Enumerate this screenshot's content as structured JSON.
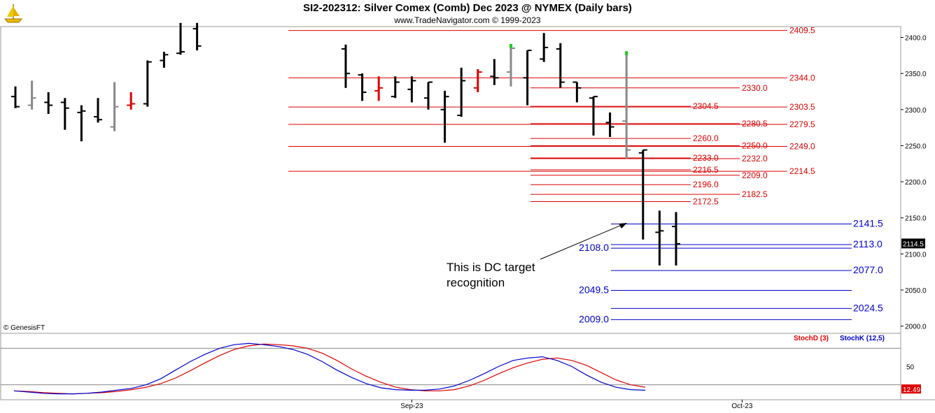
{
  "header": {
    "title": "SI2-202312:  Silver Comex (Comb) Dec 2023 @ NYMEX  (Daily bars)",
    "subtitle": "www.TradeNavigator.com © 1999-2023"
  },
  "copyright": "© GenesisFT",
  "annotation": {
    "line1": "This is DC target",
    "line2": "recognition"
  },
  "chart_data": [
    {
      "type": "ohlc",
      "title": "SI2-202312:  Silver Comex (Comb) Dec 2023 @ NYMEX  (Daily bars)",
      "ylim": [
        1990,
        2415
      ],
      "y_ticks": [
        "2400.0",
        "2350.0",
        "2300.0",
        "2250.0",
        "2200.0",
        "2150.0",
        "2100.0",
        "2050.0",
        "2000.0"
      ],
      "x_ticks": [
        {
          "label": "Sep-23",
          "index": 16
        },
        {
          "label": "Oct-23",
          "index": 36
        }
      ],
      "last_price": "2114.5",
      "colors": {
        "up": "#000000",
        "grey": "#888888",
        "red": "#dd0000",
        "green": "#22cc22",
        "red_line": "#dd0000",
        "blue_line": "#0000cc"
      },
      "bars": [
        {
          "o": 2318,
          "h": 2332,
          "l": 2302,
          "c": 2304,
          "col": "k"
        },
        {
          "o": 2306,
          "h": 2340,
          "l": 2300,
          "c": 2316,
          "col": "g"
        },
        {
          "o": 2310,
          "h": 2324,
          "l": 2294,
          "c": 2306,
          "col": "k"
        },
        {
          "o": 2310,
          "h": 2316,
          "l": 2272,
          "c": 2302,
          "col": "k"
        },
        {
          "o": 2296,
          "h": 2306,
          "l": 2256,
          "c": 2298,
          "col": "k"
        },
        {
          "o": 2290,
          "h": 2316,
          "l": 2282,
          "c": 2286,
          "col": "k"
        },
        {
          "o": 2276,
          "h": 2338,
          "l": 2270,
          "c": 2304,
          "col": "g"
        },
        {
          "o": 2306,
          "h": 2324,
          "l": 2300,
          "c": 2308,
          "col": "r"
        },
        {
          "o": 2308,
          "h": 2368,
          "l": 2304,
          "c": 2366,
          "col": "k"
        },
        {
          "o": 2368,
          "h": 2380,
          "l": 2358,
          "c": 2376,
          "col": "k"
        },
        {
          "o": 2378,
          "h": 2420,
          "l": 2376,
          "c": 2380,
          "col": "k"
        },
        {
          "o": 2412,
          "h": 2420,
          "l": 2382,
          "c": 2388,
          "col": "k"
        },
        {
          "o": 2384,
          "h": 2390,
          "l": 2330,
          "c": 2350,
          "col": "k"
        },
        {
          "o": 2348,
          "h": 2350,
          "l": 2312,
          "c": 2324,
          "col": "k"
        },
        {
          "o": 2326,
          "h": 2346,
          "l": 2312,
          "c": 2330,
          "col": "r"
        },
        {
          "o": 2318,
          "h": 2346,
          "l": 2316,
          "c": 2338,
          "col": "k"
        },
        {
          "o": 2328,
          "h": 2346,
          "l": 2310,
          "c": 2340,
          "col": "k"
        },
        {
          "o": 2316,
          "h": 2338,
          "l": 2300,
          "c": 2338,
          "col": "k"
        },
        {
          "o": 2300,
          "h": 2326,
          "l": 2254,
          "c": 2318,
          "col": "k"
        },
        {
          "o": 2292,
          "h": 2358,
          "l": 2290,
          "c": 2340,
          "col": "k"
        },
        {
          "o": 2330,
          "h": 2356,
          "l": 2324,
          "c": 2352,
          "col": "r"
        },
        {
          "o": 2346,
          "h": 2370,
          "l": 2334,
          "c": 2344,
          "col": "k"
        },
        {
          "o": 2352,
          "h": 2390,
          "l": 2332,
          "c": 2385,
          "col": "g"
        },
        {
          "o": 2344,
          "h": 2382,
          "l": 2306,
          "c": 2382,
          "col": "k"
        },
        {
          "o": 2370,
          "h": 2406,
          "l": 2366,
          "c": 2386,
          "col": "k"
        },
        {
          "o": 2384,
          "h": 2392,
          "l": 2330,
          "c": 2338,
          "col": "k"
        },
        {
          "o": 2338,
          "h": 2338,
          "l": 2310,
          "c": 2330,
          "col": "k"
        },
        {
          "o": 2316,
          "h": 2318,
          "l": 2264,
          "c": 2318,
          "col": "k"
        },
        {
          "o": 2282,
          "h": 2296,
          "l": 2262,
          "c": 2276,
          "col": "k"
        },
        {
          "o": 2284,
          "h": 2380,
          "l": 2232,
          "c": 2244,
          "col": "g"
        },
        {
          "o": 2240,
          "h": 2244,
          "l": 2120,
          "c": 2244,
          "col": "k"
        },
        {
          "o": 2130,
          "h": 2160,
          "l": 2084,
          "c": 2132,
          "col": "k"
        },
        {
          "o": 2138,
          "h": 2158,
          "l": 2084,
          "c": 2114,
          "col": "k"
        }
      ],
      "bar_gaps": [
        11
      ],
      "levels": [
        {
          "value": "2409.5",
          "color": "red",
          "label_side": "right"
        },
        {
          "value": "2344.0",
          "color": "red",
          "label_side": "right"
        },
        {
          "value": "2330.0",
          "color": "red",
          "label_side": "mid"
        },
        {
          "value": "2304.5",
          "color": "red",
          "label_side": "left2"
        },
        {
          "value": "2303.5",
          "color": "red",
          "label_side": "right"
        },
        {
          "value": "2280.5",
          "color": "red",
          "label_side": "mid"
        },
        {
          "value": "2279.5",
          "color": "red",
          "label_side": "right"
        },
        {
          "value": "2260.0",
          "color": "red",
          "label_side": "left2"
        },
        {
          "value": "2250.0",
          "color": "red",
          "label_side": "mid"
        },
        {
          "value": "2249.0",
          "color": "red",
          "label_side": "right"
        },
        {
          "value": "2233.0",
          "color": "red",
          "label_side": "left2"
        },
        {
          "value": "2232.0",
          "color": "red",
          "label_side": "mid"
        },
        {
          "value": "2216.5",
          "color": "red",
          "label_side": "left2"
        },
        {
          "value": "2214.5",
          "color": "red",
          "label_side": "right"
        },
        {
          "value": "2209.0",
          "color": "red",
          "label_side": "mid"
        },
        {
          "value": "2196.0",
          "color": "red",
          "label_side": "left2"
        },
        {
          "value": "2182.5",
          "color": "red",
          "label_side": "mid"
        },
        {
          "value": "2172.5",
          "color": "red",
          "label_side": "left2"
        },
        {
          "value": "2141.5",
          "color": "blue",
          "label_side": "right"
        },
        {
          "value": "2113.0",
          "color": "blue",
          "label_side": "right"
        },
        {
          "value": "2108.0",
          "color": "blue",
          "label_side": "left"
        },
        {
          "value": "2077.0",
          "color": "blue",
          "label_side": "right"
        },
        {
          "value": "2049.5",
          "color": "blue",
          "label_side": "left"
        },
        {
          "value": "2024.5",
          "color": "blue",
          "label_side": "right"
        },
        {
          "value": "2009.0",
          "color": "blue",
          "label_side": "left"
        }
      ]
    },
    {
      "type": "line",
      "title": "",
      "ylim": [
        0,
        100
      ],
      "y_ticks": [
        "50"
      ],
      "reference_lines": [
        80,
        20
      ],
      "last_value": "12.49",
      "series": [
        {
          "name": "StochD (3)",
          "color": "#dd0000",
          "values": [
            10,
            9,
            7,
            6,
            5,
            6,
            7,
            9,
            12,
            16,
            22,
            31,
            43,
            56,
            68,
            78,
            84,
            87,
            86,
            84,
            80,
            72,
            60,
            46,
            34,
            24,
            16,
            12,
            10,
            10,
            12,
            18,
            27,
            38,
            48,
            56,
            62,
            64,
            60,
            52,
            40,
            28,
            20,
            16
          ]
        },
        {
          "name": "StochK (12,5)",
          "color": "#0000cc",
          "values": [
            10,
            8,
            6,
            5,
            5,
            6,
            8,
            11,
            14,
            20,
            30,
            44,
            58,
            70,
            80,
            86,
            88,
            86,
            83,
            78,
            70,
            58,
            44,
            32,
            22,
            15,
            12,
            11,
            11,
            13,
            18,
            27,
            38,
            50,
            60,
            64,
            66,
            60,
            50,
            36,
            24,
            16,
            12,
            11
          ]
        }
      ]
    }
  ]
}
